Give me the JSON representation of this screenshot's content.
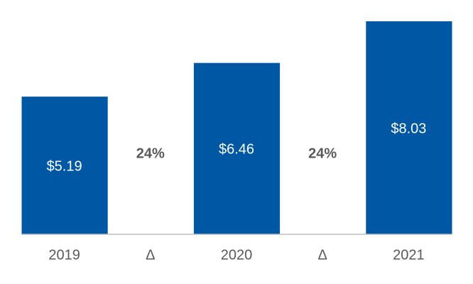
{
  "chart_data": {
    "type": "bar",
    "categories": [
      "2019",
      "Δ",
      "2020",
      "Δ",
      "2021"
    ],
    "values": [
      5.19,
      null,
      6.46,
      null,
      8.03
    ],
    "value_labels": [
      "$5.19",
      null,
      "$6.46",
      null,
      "$8.03"
    ],
    "deltas": [
      null,
      24,
      null,
      24,
      null
    ],
    "delta_labels": [
      null,
      "24%",
      null,
      "24%",
      null
    ],
    "color": "#0057a3"
  }
}
